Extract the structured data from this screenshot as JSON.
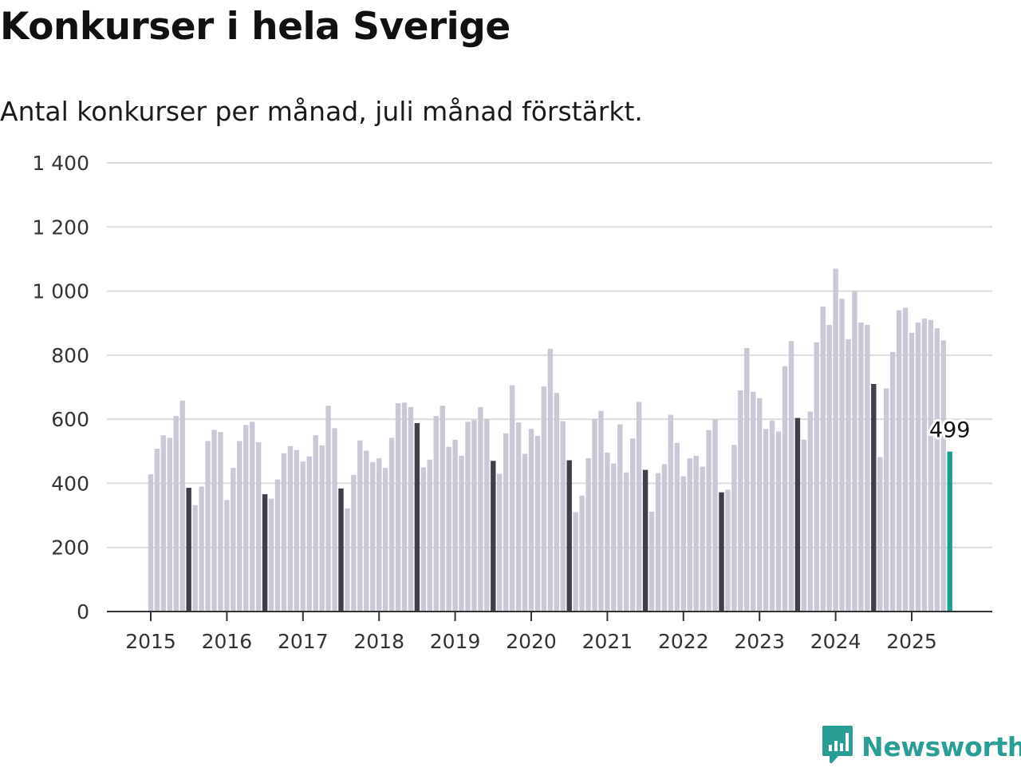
{
  "title": "Konkurser i hela Sverige",
  "subtitle": "Antal konkurser per månad, juli månad förstärkt.",
  "brand": {
    "name": "Newsworthy",
    "color": "#2a9d94",
    "icon": "newsworthy-chart-bubble-icon"
  },
  "colors": {
    "regular": "#c8c8d6",
    "july": "#3f3f4c",
    "latest": "#1b9e8f",
    "grid": "#dcdcdc",
    "axis": "#333333"
  },
  "chart_data": {
    "type": "bar",
    "title": "Konkurser i hela Sverige",
    "subtitle": "Antal konkurser per månad, juli månad förstärkt.",
    "xlabel": "",
    "ylabel": "",
    "ylim": [
      0,
      1400
    ],
    "yticks": [
      0,
      200,
      400,
      600,
      800,
      1000,
      1200,
      1400
    ],
    "ytick_labels": [
      "0",
      "200",
      "400",
      "600",
      "800",
      "1 000",
      "1 200",
      "1 400"
    ],
    "x_tick_labels": [
      "2015",
      "2016",
      "2017",
      "2018",
      "2019",
      "2020",
      "2021",
      "2022",
      "2023",
      "2024",
      "2025"
    ],
    "grid": true,
    "start": "2015-01",
    "end": "2025-07",
    "highlight": "july",
    "annotation": {
      "date": "2025-07",
      "label": "499"
    },
    "values": [
      428,
      508,
      550,
      542,
      610,
      658,
      386,
      332,
      390,
      532,
      567,
      560,
      348,
      448,
      532,
      582,
      592,
      528,
      366,
      352,
      412,
      494,
      516,
      504,
      468,
      484,
      550,
      518,
      642,
      572,
      384,
      322,
      426,
      534,
      502,
      466,
      478,
      448,
      542,
      650,
      652,
      638,
      588,
      450,
      474,
      610,
      642,
      514,
      536,
      486,
      592,
      598,
      638,
      600,
      470,
      430,
      556,
      706,
      590,
      492,
      570,
      548,
      702,
      820,
      682,
      594,
      472,
      310,
      362,
      478,
      600,
      626,
      496,
      462,
      584,
      434,
      540,
      654,
      442,
      312,
      432,
      460,
      614,
      526,
      422,
      478,
      486,
      452,
      566,
      600,
      372,
      380,
      520,
      690,
      822,
      686,
      666,
      570,
      596,
      562,
      766,
      844,
      604,
      536,
      624,
      840,
      952,
      894,
      1070,
      976,
      850,
      1000,
      902,
      894,
      710,
      482,
      696,
      810,
      940,
      948,
      870,
      902,
      914,
      910,
      884,
      846,
      499
    ]
  }
}
